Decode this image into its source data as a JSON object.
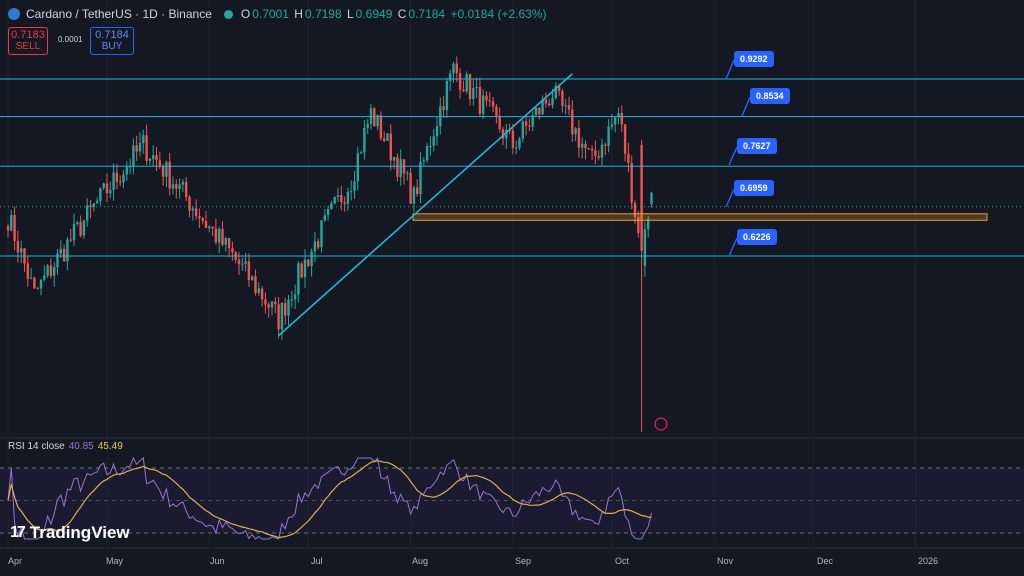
{
  "header": {
    "title": "Cardano / TetherUS · 1D · Binance",
    "open_label": "O",
    "open": "0.7001",
    "high_label": "H",
    "high": "0.7198",
    "low_label": "L",
    "low": "0.6949",
    "close_label": "C",
    "close": "0.7184",
    "change": "+0.0184 (+2.63%)"
  },
  "trade": {
    "sell_price": "0.7183",
    "sell_label": "SELL",
    "spread": "0.0001",
    "buy_price": "0.7184",
    "buy_label": "BUY"
  },
  "rsi": {
    "label": "RSI 14 close",
    "value1": "40.85",
    "value2": "45.49"
  },
  "brand": {
    "name": "TradingView"
  },
  "colors": {
    "up": "#26a69a",
    "down": "#ef5350",
    "level": "#22b6d4",
    "zone": "#f0a030",
    "rsi": "#9575cd",
    "rsi_ma": "#d4b44a",
    "tag": "#2962ff"
  },
  "chart_data": [
    {
      "type": "candlestick",
      "title": "Cardano / TetherUS · 1D · Binance",
      "x_tick_labels": [
        "Apr",
        "May",
        "Jun",
        "Jul",
        "Aug",
        "Sep",
        "Oct",
        "Nov",
        "Dec",
        "2026"
      ],
      "levels": [
        {
          "label": "0.9292",
          "value": 0.9292
        },
        {
          "label": "0.8534",
          "value": 0.8534
        },
        {
          "label": "0.7627",
          "value": 0.7627
        },
        {
          "label": "0.6959",
          "value": 0.6959
        },
        {
          "label": "0.6226",
          "value": 0.6226
        }
      ],
      "support_zone": [
        0.675,
        0.685
      ],
      "trendline": {
        "start": {
          "date": "2025-06-22",
          "value": 0.52
        },
        "end": {
          "date": "2025-09-19",
          "value": 0.94
        }
      },
      "approx_close_path": [
        {
          "date": "2025-04-01",
          "close": 0.68
        },
        {
          "date": "2025-04-09",
          "close": 0.57
        },
        {
          "date": "2025-04-22",
          "close": 0.66
        },
        {
          "date": "2025-05-12",
          "close": 0.8
        },
        {
          "date": "2025-05-31",
          "close": 0.67
        },
        {
          "date": "2025-06-22",
          "close": 0.54
        },
        {
          "date": "2025-07-14",
          "close": 0.74
        },
        {
          "date": "2025-07-20",
          "close": 0.86
        },
        {
          "date": "2025-08-02",
          "close": 0.71
        },
        {
          "date": "2025-08-14",
          "close": 0.95
        },
        {
          "date": "2025-09-01",
          "close": 0.8
        },
        {
          "date": "2025-09-13",
          "close": 0.9
        },
        {
          "date": "2025-09-25",
          "close": 0.77
        },
        {
          "date": "2025-10-03",
          "close": 0.86
        },
        {
          "date": "2025-10-10",
          "close": 0.62
        },
        {
          "date": "2025-10-13",
          "close": 0.7184
        }
      ],
      "flash_crash_low": 0.28
    },
    {
      "type": "line",
      "title": "RSI 14 close",
      "series": [
        {
          "name": "RSI"
        },
        {
          "name": "RSI-based MA"
        }
      ],
      "last_values": [
        40.85,
        45.49
      ]
    }
  ]
}
